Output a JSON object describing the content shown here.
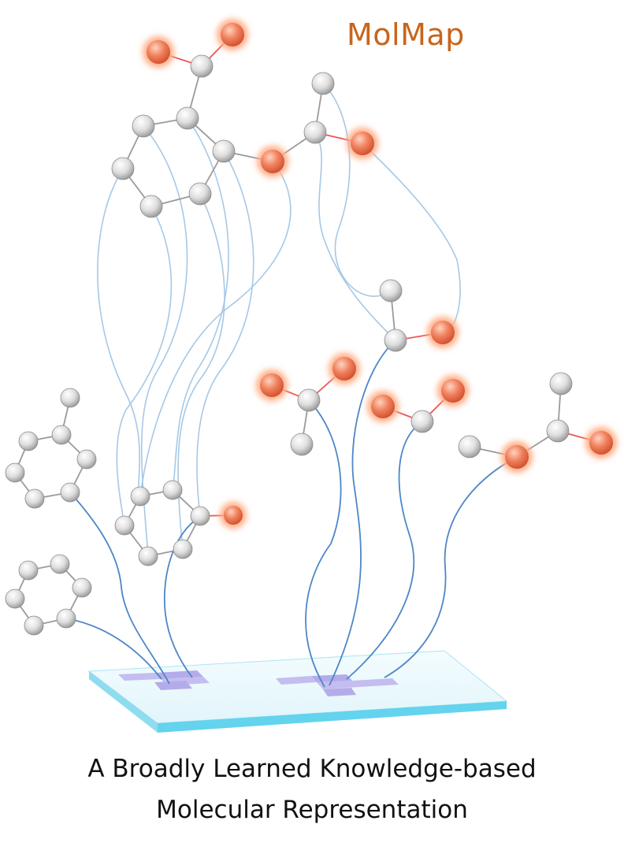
{
  "brand": {
    "name": "MolMap",
    "color": "#c8651b"
  },
  "caption": {
    "line1": "A Broadly Learned Knowledge-based",
    "line2": "Molecular Representation"
  },
  "colors": {
    "carbon_atom": "#d8d8d8",
    "oxygen_atom": "#f08060",
    "oxygen_glow": "#ffb38c",
    "bond_gray": "#9a9a9a",
    "bond_red": "#ee5555",
    "link_light": "#9ec4e4",
    "link_dark": "#4f86c6",
    "base_plate": "#eaf8fc",
    "base_edge": "#5fd4ee",
    "grid_cell": "#b9b4ee"
  }
}
